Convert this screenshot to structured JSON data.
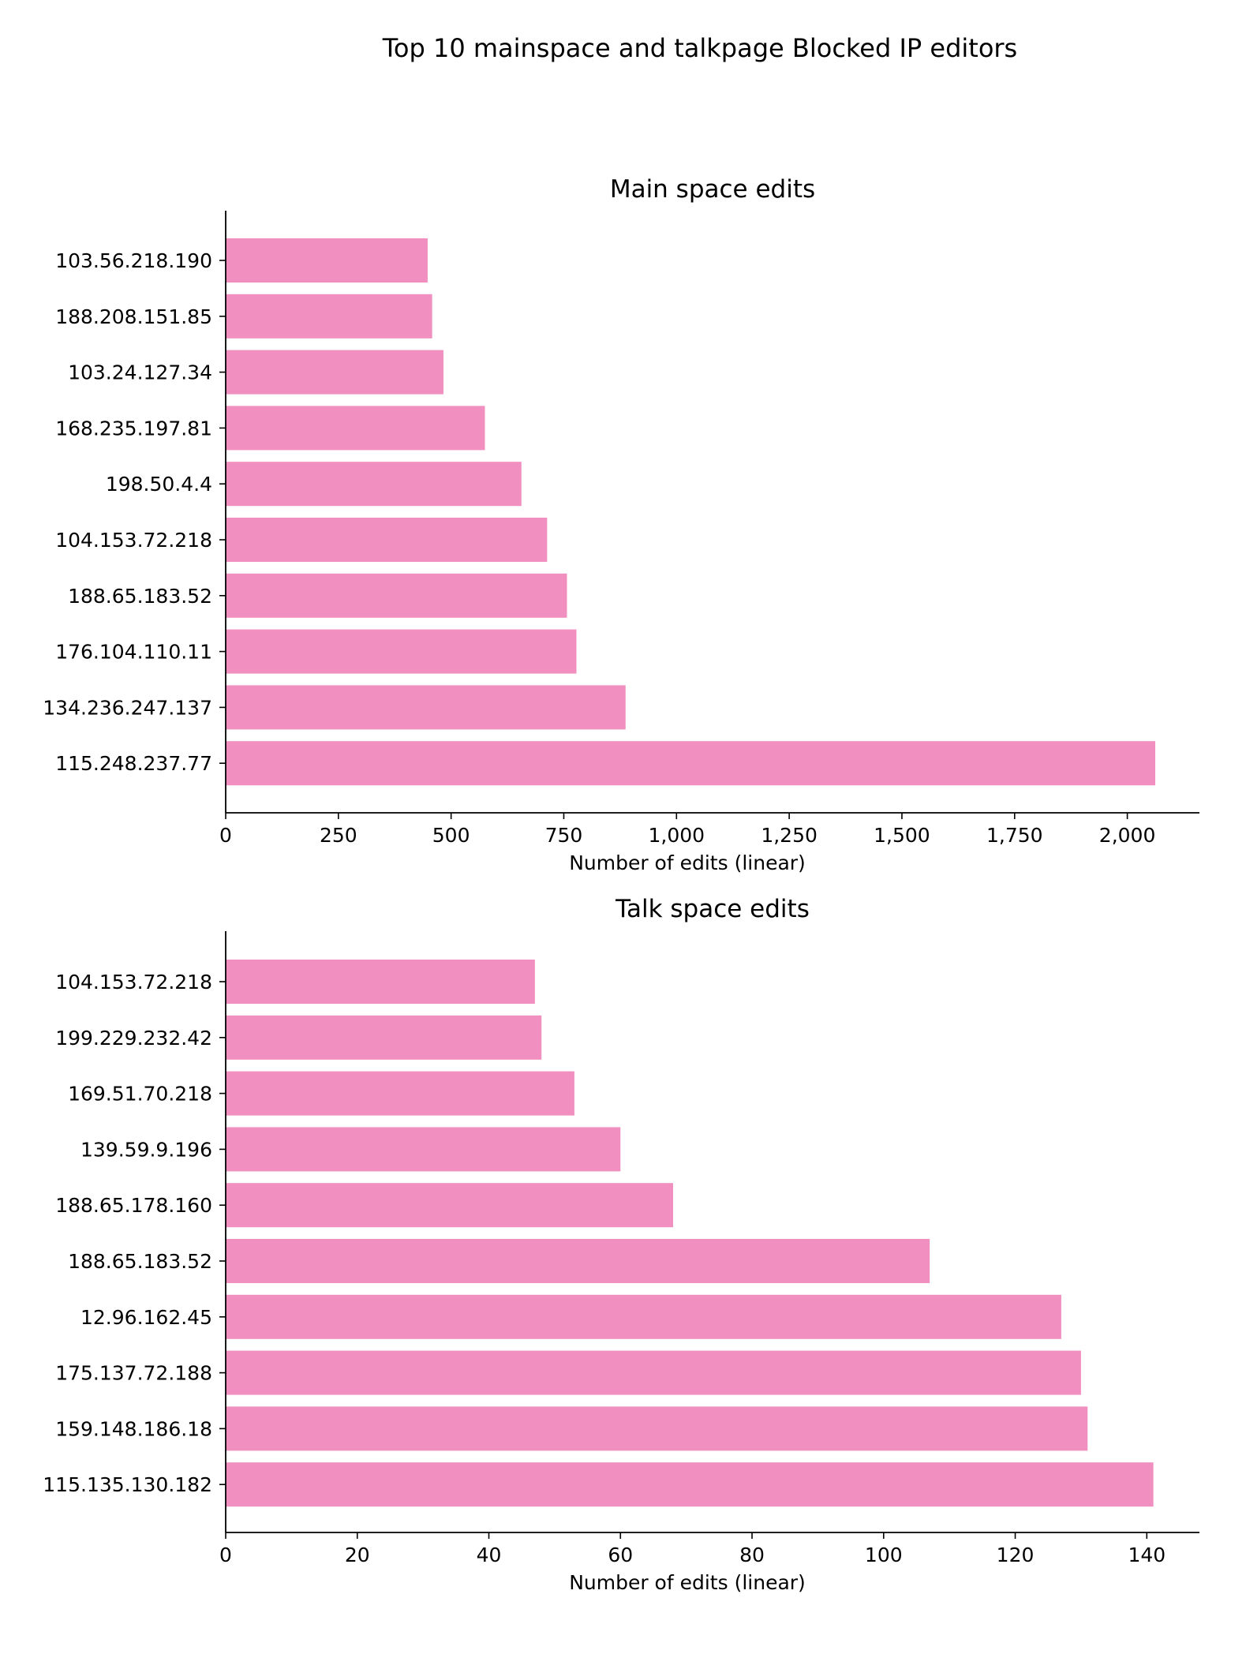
{
  "figure_title": "Top 10 mainspace and talkpage Blocked IP editors",
  "bar_color": "#f08fc0",
  "chart_data": [
    {
      "type": "bar",
      "orientation": "horizontal",
      "title": "Main space edits",
      "xlabel": "Number of edits (linear)",
      "ylabel": "",
      "xlim": [
        0,
        2160
      ],
      "xticks": [
        0,
        250,
        500,
        750,
        1000,
        1250,
        1500,
        1750,
        2000
      ],
      "xtick_labels": [
        "0",
        "250",
        "500",
        "750",
        "1,000",
        "1,250",
        "1,500",
        "1,750",
        "2,000"
      ],
      "categories": [
        "103.56.218.190",
        "188.208.151.85",
        "103.24.127.34",
        "168.235.197.81",
        "198.50.4.4",
        "104.153.72.218",
        "188.65.183.52",
        "176.104.110.11",
        "134.236.247.137",
        "115.248.237.77"
      ],
      "values": [
        448,
        458,
        483,
        575,
        656,
        713,
        757,
        778,
        887,
        2062
      ]
    },
    {
      "type": "bar",
      "orientation": "horizontal",
      "title": "Talk space edits",
      "xlabel": "Number of edits (linear)",
      "ylabel": "",
      "xlim": [
        0,
        148
      ],
      "xticks": [
        0,
        20,
        40,
        60,
        80,
        100,
        120,
        140
      ],
      "xtick_labels": [
        "0",
        "20",
        "40",
        "60",
        "80",
        "100",
        "120",
        "140"
      ],
      "categories": [
        "104.153.72.218",
        "199.229.232.42",
        "169.51.70.218",
        "139.59.9.196",
        "188.65.178.160",
        "188.65.183.52",
        "12.96.162.45",
        "175.137.72.188",
        "159.148.186.18",
        "115.135.130.182"
      ],
      "values": [
        47,
        48,
        53,
        60,
        68,
        107,
        127,
        130,
        131,
        141
      ]
    }
  ]
}
